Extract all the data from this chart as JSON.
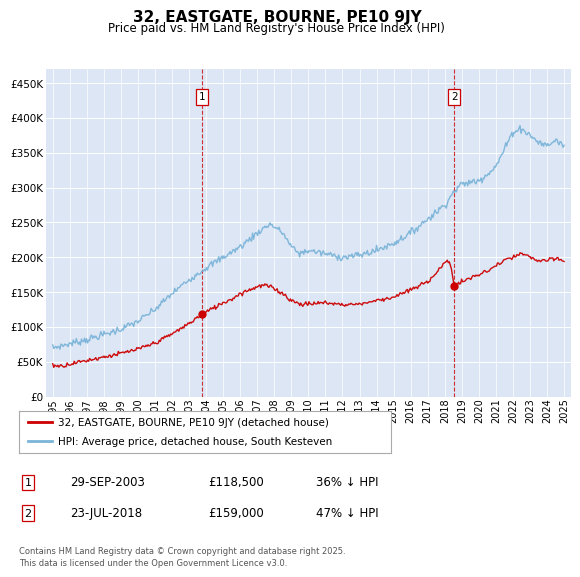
{
  "title": "32, EASTGATE, BOURNE, PE10 9JY",
  "subtitle": "Price paid vs. HM Land Registry's House Price Index (HPI)",
  "ylabel_ticks": [
    "£0",
    "£50K",
    "£100K",
    "£150K",
    "£200K",
    "£250K",
    "£300K",
    "£350K",
    "£400K",
    "£450K"
  ],
  "ytick_values": [
    0,
    50000,
    100000,
    150000,
    200000,
    250000,
    300000,
    350000,
    400000,
    450000
  ],
  "ylim": [
    0,
    470000
  ],
  "hpi_color": "#7ab4d8",
  "price_color": "#cc0000",
  "vline_color": "#cc0000",
  "sale1_date_num": 2003.75,
  "sale1_price": 118500,
  "sale2_date_num": 2018.56,
  "sale2_price": 159000,
  "legend_line1": "32, EASTGATE, BOURNE, PE10 9JY (detached house)",
  "legend_line2": "HPI: Average price, detached house, South Kesteven",
  "table_row1": [
    "1",
    "29-SEP-2003",
    "£118,500",
    "36% ↓ HPI"
  ],
  "table_row2": [
    "2",
    "23-JUL-2018",
    "£159,000",
    "47% ↓ HPI"
  ],
  "footnote": "Contains HM Land Registry data © Crown copyright and database right 2025.\nThis data is licensed under the Open Government Licence v3.0.",
  "background_color": "#ffffff",
  "plot_bg_color": "#dce6f5"
}
